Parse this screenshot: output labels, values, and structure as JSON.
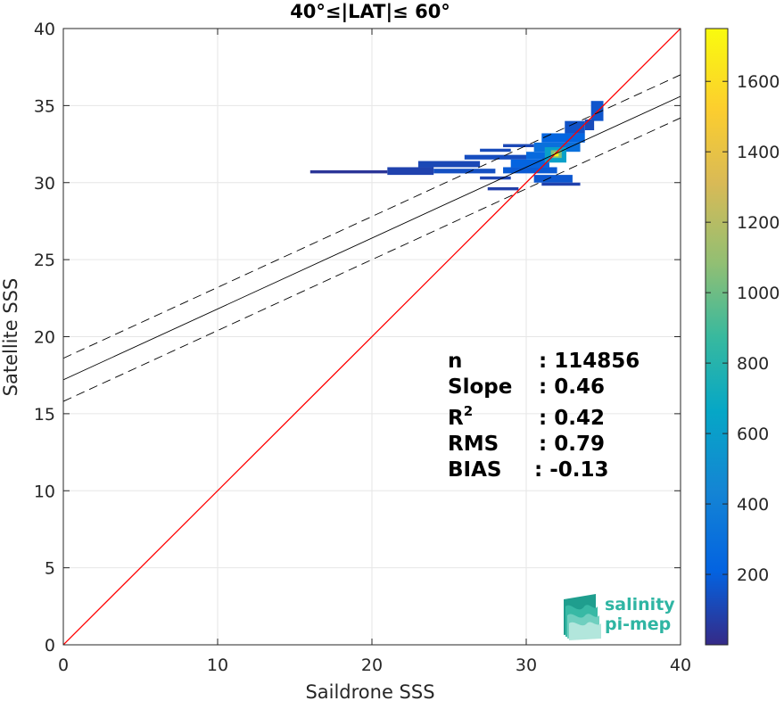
{
  "chart_data": {
    "type": "heatmap",
    "title": "40°≤|LAT|≤ 60°",
    "xlabel": "Saildrone SSS",
    "ylabel": "Satellite SSS",
    "xlim": [
      0,
      40
    ],
    "ylim": [
      0,
      40
    ],
    "xticks": [
      "0",
      "10",
      "20",
      "30",
      "40"
    ],
    "yticks": [
      "0",
      "5",
      "10",
      "15",
      "20",
      "25",
      "30",
      "35",
      "40"
    ],
    "grid": true,
    "colorbar": {
      "min": 0,
      "max": 1750,
      "ticks": [
        "200",
        "400",
        "600",
        "800",
        "1000",
        "1200",
        "1400",
        "1600"
      ],
      "colormap": "parula"
    },
    "lines": [
      {
        "role": "one-to-one",
        "color": "#ff0000",
        "style": "solid",
        "x": [
          0,
          40
        ],
        "y": [
          0,
          40
        ]
      },
      {
        "role": "regression",
        "color": "#000000",
        "style": "solid",
        "x": [
          0,
          40
        ],
        "y": [
          17.2,
          35.6
        ]
      },
      {
        "role": "regression-upper",
        "color": "#000000",
        "style": "dashed",
        "x": [
          0,
          40
        ],
        "y": [
          18.6,
          37.0
        ]
      },
      {
        "role": "regression-lower",
        "color": "#000000",
        "style": "dashed",
        "x": [
          0,
          40
        ],
        "y": [
          15.8,
          34.2
        ]
      }
    ],
    "density": [
      {
        "x": 16,
        "x2": 21,
        "y": 30.6,
        "y2": 30.8,
        "count": 40
      },
      {
        "x": 21,
        "x2": 24,
        "y": 30.5,
        "y2": 31.0,
        "count": 90
      },
      {
        "x": 23,
        "x2": 27,
        "y": 31.0,
        "y2": 31.4,
        "count": 110
      },
      {
        "x": 24,
        "x2": 28,
        "y": 30.6,
        "y2": 30.9,
        "count": 140
      },
      {
        "x": 26,
        "x2": 30,
        "y": 31.5,
        "y2": 31.8,
        "count": 130
      },
      {
        "x": 27,
        "x2": 29,
        "y": 30.2,
        "y2": 30.4,
        "count": 100
      },
      {
        "x": 27.5,
        "x2": 29.5,
        "y": 29.5,
        "y2": 29.7,
        "count": 80
      },
      {
        "x": 27,
        "x2": 29,
        "y": 32.0,
        "y2": 32.2,
        "count": 120
      },
      {
        "x": 28.5,
        "x2": 30.5,
        "y": 32.3,
        "y2": 32.5,
        "count": 110
      },
      {
        "x": 28.5,
        "x2": 32,
        "y": 30.6,
        "y2": 31.0,
        "count": 180
      },
      {
        "x": 29,
        "x2": 31.5,
        "y": 31.0,
        "y2": 31.5,
        "count": 220
      },
      {
        "x": 30,
        "x2": 32.5,
        "y": 31.5,
        "y2": 32.0,
        "count": 260
      },
      {
        "x": 30.5,
        "x2": 33.5,
        "y": 32.0,
        "y2": 32.6,
        "count": 300
      },
      {
        "x": 31,
        "x2": 33.8,
        "y": 32.6,
        "y2": 33.2,
        "count": 230
      },
      {
        "x": 32.5,
        "x2": 33.8,
        "y": 33.2,
        "y2": 34.0,
        "count": 150
      },
      {
        "x": 30.5,
        "x2": 33,
        "y": 30.0,
        "y2": 30.5,
        "count": 170
      },
      {
        "x": 31,
        "x2": 33.5,
        "y": 29.8,
        "y2": 30.0,
        "count": 90
      },
      {
        "x": 31.2,
        "x2": 32.6,
        "y": 31.3,
        "y2": 32.3,
        "count": 620
      },
      {
        "x": 31.6,
        "x2": 32.3,
        "y": 31.6,
        "y2": 32.1,
        "count": 1050
      },
      {
        "x": 31.8,
        "x2": 32.1,
        "y": 31.7,
        "y2": 31.95,
        "count": 1700
      },
      {
        "x": 34.2,
        "x2": 35.0,
        "y": 34.0,
        "y2": 35.3,
        "count": 160
      },
      {
        "x": 33.8,
        "x2": 34.4,
        "y": 33.4,
        "y2": 34.1,
        "count": 120
      }
    ]
  },
  "stats": [
    {
      "key": "n",
      "value": ": 114856"
    },
    {
      "key": "Slope",
      "value": ": 0.46"
    },
    {
      "key": "R",
      "sup": "2",
      "value": ": 0.42"
    },
    {
      "key": "RMS",
      "value": ": 0.79"
    },
    {
      "key": "BIAS",
      "value": ": -0.13"
    }
  ],
  "logo": {
    "line1": "salinity",
    "line2": "pi-mep",
    "color": "#2fb5a3"
  }
}
